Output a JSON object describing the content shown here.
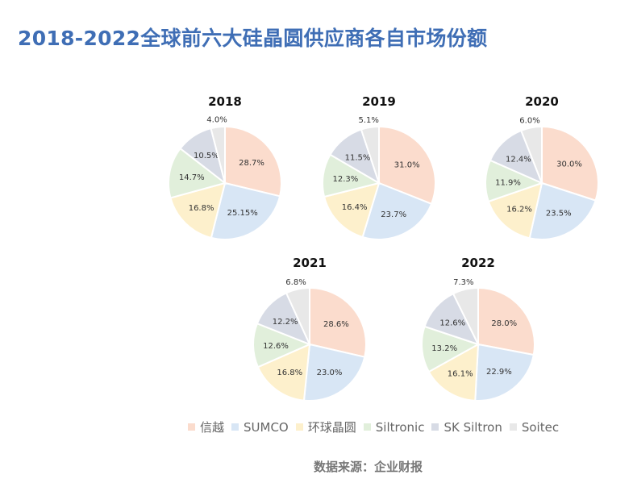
{
  "page_title": "2018-2022全球前六大硅晶圆供应商各自市场份额",
  "source_note": "数据来源：企业财报",
  "chart_data": {
    "type": "pie",
    "title": "2018-2022全球前六大硅晶圆供应商各自市场份额",
    "legend": {
      "placement": "bottom",
      "entries": [
        {
          "name": "信越",
          "color": "#fbdccd"
        },
        {
          "name": "SUMCO",
          "color": "#d8e6f5"
        },
        {
          "name": "环球晶圆",
          "color": "#fdf0cc"
        },
        {
          "name": "Siltronic",
          "color": "#e1efdb"
        },
        {
          "name": "SK Siltron",
          "color": "#d7dbe5"
        },
        {
          "name": "Soitec",
          "color": "#e8e8e8"
        }
      ]
    },
    "charts": [
      {
        "year": "2018",
        "values": [
          28.7,
          25.15,
          16.8,
          14.7,
          10.5,
          4.0
        ],
        "labels": [
          "28.7%",
          "25.15%",
          "16.8%",
          "14.7%",
          "10.5%",
          "4.0%"
        ]
      },
      {
        "year": "2019",
        "values": [
          31.0,
          23.7,
          16.4,
          12.3,
          11.5,
          5.1
        ],
        "labels": [
          "31.0%",
          "23.7%",
          "16.4%",
          "12.3%",
          "11.5%",
          "5.1%"
        ]
      },
      {
        "year": "2020",
        "values": [
          30.0,
          23.5,
          16.2,
          11.9,
          12.4,
          6.0
        ],
        "labels": [
          "30.0%",
          "23.5%",
          "16.2%",
          "11.9%",
          "12.4%",
          "6.0%"
        ]
      },
      {
        "year": "2021",
        "values": [
          28.6,
          23.0,
          16.8,
          12.6,
          12.2,
          6.8
        ],
        "labels": [
          "28.6%",
          "23.0%",
          "16.8%",
          "12.6%",
          "12.2%",
          "6.8%"
        ]
      },
      {
        "year": "2022",
        "values": [
          28.0,
          22.9,
          16.1,
          13.2,
          12.6,
          7.3
        ],
        "labels": [
          "28.0%",
          "22.9%",
          "16.1%",
          "13.2%",
          "12.6%",
          "7.3%"
        ]
      }
    ]
  }
}
